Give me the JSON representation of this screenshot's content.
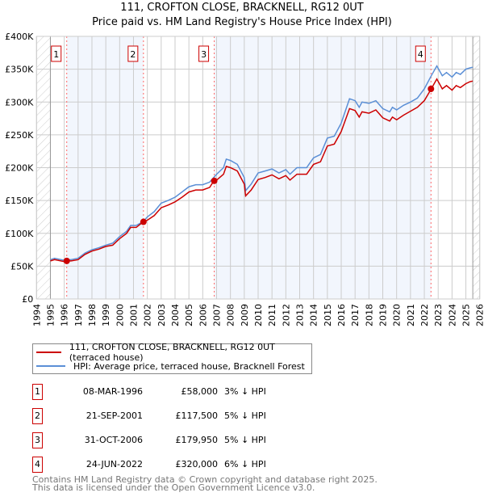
{
  "chart_data": {
    "type": "line",
    "title": "111, CROFTON CLOSE, BRACKNELL, RG12 0UT",
    "subtitle": "Price paid vs. HM Land Registry's House Price Index (HPI)",
    "xlim": [
      1994,
      2026
    ],
    "ylim": [
      0,
      400000
    ],
    "x_ticks": [
      "1994",
      "1995",
      "1996",
      "1997",
      "1998",
      "1999",
      "2000",
      "2001",
      "2002",
      "2003",
      "2004",
      "2005",
      "2006",
      "2007",
      "2008",
      "2009",
      "2010",
      "2011",
      "2012",
      "2013",
      "2014",
      "2015",
      "2016",
      "2017",
      "2018",
      "2019",
      "2020",
      "2021",
      "2022",
      "2023",
      "2024",
      "2025",
      "2026"
    ],
    "y_ticks": [
      {
        "v": 0,
        "label": "£0"
      },
      {
        "v": 50000,
        "label": "£50K"
      },
      {
        "v": 100000,
        "label": "£100K"
      },
      {
        "v": 150000,
        "label": "£150K"
      },
      {
        "v": 200000,
        "label": "£200K"
      },
      {
        "v": 250000,
        "label": "£250K"
      },
      {
        "v": 300000,
        "label": "£300K"
      },
      {
        "v": 350000,
        "label": "£350K"
      },
      {
        "v": 400000,
        "label": "£400K"
      }
    ],
    "data_range": [
      1995,
      2025.5
    ],
    "grid": true,
    "series": [
      {
        "name": "111, CROFTON CLOSE, BRACKNELL, RG12 0UT (terraced house)",
        "color": "#cc0000",
        "x": [
          1995,
          1995.3,
          1996,
          1996.2,
          1996.5,
          1997,
          1997.5,
          1998,
          1998.5,
          1999,
          1999.5,
          2000,
          2000.5,
          2000.8,
          2001.2,
          2001.7,
          2002,
          2002.5,
          2003,
          2003.5,
          2004,
          2004.5,
          2005,
          2005.5,
          2006,
          2006.5,
          2006.8,
          2007,
          2007.5,
          2007.7,
          2008,
          2008.5,
          2009,
          2009.1,
          2009.5,
          2010,
          2010.5,
          2011,
          2011.5,
          2012,
          2012.3,
          2012.8,
          2013.5,
          2014,
          2014.5,
          2015,
          2015.5,
          2016,
          2016.6,
          2017,
          2017.3,
          2017.5,
          2018,
          2018.5,
          2019,
          2019.5,
          2019.7,
          2020,
          2020.5,
          2021,
          2021.5,
          2022,
          2022.5,
          2022.9,
          2023.3,
          2023.6,
          2024,
          2024.3,
          2024.6,
          2025,
          2025.3,
          2025.5
        ],
        "y": [
          58,
          60,
          57,
          58,
          58,
          60,
          68,
          73,
          76,
          80,
          82,
          92,
          100,
          109,
          109,
          117.5,
          120,
          127,
          139,
          143,
          148,
          155,
          163,
          166,
          166,
          170,
          180,
          181,
          190,
          202,
          200,
          195,
          175,
          157,
          166,
          182,
          185,
          189,
          183,
          188,
          181,
          190,
          190,
          205,
          209,
          233,
          236,
          255,
          290,
          287,
          277,
          285,
          283,
          288,
          276,
          271,
          277,
          273,
          280,
          286,
          292,
          302,
          320,
          335,
          320,
          325,
          318,
          325,
          322,
          328,
          331,
          332
        ]
      },
      {
        "name": "HPI: Average price, terraced house, Bracknell Forest",
        "color": "#5b8fd6",
        "x": [
          1995,
          1995.3,
          1996,
          1996.5,
          1997,
          1997.5,
          1998,
          1998.5,
          1999,
          1999.5,
          2000,
          2000.5,
          2000.8,
          2001.2,
          2001.7,
          2002,
          2002.5,
          2003,
          2003.5,
          2004,
          2004.5,
          2005,
          2005.5,
          2006,
          2006.5,
          2007,
          2007.5,
          2007.7,
          2008,
          2008.5,
          2009,
          2009.1,
          2009.5,
          2010,
          2010.5,
          2011,
          2011.5,
          2012,
          2012.3,
          2012.8,
          2013.5,
          2014,
          2014.5,
          2015,
          2015.5,
          2016,
          2016.6,
          2017,
          2017.3,
          2017.5,
          2018,
          2018.5,
          2019,
          2019.5,
          2019.7,
          2020,
          2020.5,
          2021,
          2021.5,
          2022,
          2022.5,
          2022.9,
          2023.3,
          2023.6,
          2024,
          2024.3,
          2024.6,
          2025,
          2025.3,
          2025.5
        ],
        "y": [
          60,
          62,
          59,
          60,
          62,
          70,
          75,
          78,
          82,
          85,
          95,
          103,
          112,
          112,
          118,
          125,
          133,
          146,
          150,
          155,
          163,
          171,
          174,
          174,
          178,
          190,
          200,
          213,
          211,
          205,
          185,
          165,
          175,
          192,
          195,
          198,
          192,
          197,
          190,
          200,
          200,
          215,
          220,
          245,
          248,
          268,
          305,
          302,
          292,
          300,
          298,
          302,
          290,
          285,
          292,
          288,
          295,
          300,
          306,
          320,
          340,
          355,
          340,
          345,
          338,
          345,
          342,
          350,
          352,
          353
        ]
      }
    ],
    "y_unit": "£K",
    "sales": [
      {
        "num": "1",
        "x": 1996.18,
        "price": 58
      },
      {
        "num": "2",
        "x": 2001.72,
        "price": 117.5
      },
      {
        "num": "3",
        "x": 2006.83,
        "price": 179.95
      },
      {
        "num": "4",
        "x": 2022.48,
        "price": 320
      }
    ],
    "legend_position": "below"
  },
  "legend": {
    "property": "111, CROFTON CLOSE, BRACKNELL, RG12 0UT (terraced house)",
    "hpi": "HPI: Average price, terraced house, Bracknell Forest"
  },
  "transactions": [
    {
      "num": "1",
      "date": "08-MAR-1996",
      "price": "£58,000",
      "diff": "3% ↓ HPI"
    },
    {
      "num": "2",
      "date": "21-SEP-2001",
      "price": "£117,500",
      "diff": "5% ↓ HPI"
    },
    {
      "num": "3",
      "date": "31-OCT-2006",
      "price": "£179,950",
      "diff": "5% ↓ HPI"
    },
    {
      "num": "4",
      "date": "24-JUN-2022",
      "price": "£320,000",
      "diff": "6% ↓ HPI"
    }
  ],
  "footer": {
    "line1": "Contains HM Land Registry data © Crown copyright and database right 2025.",
    "line2": "This data is licensed under the Open Government Licence v3.0."
  }
}
